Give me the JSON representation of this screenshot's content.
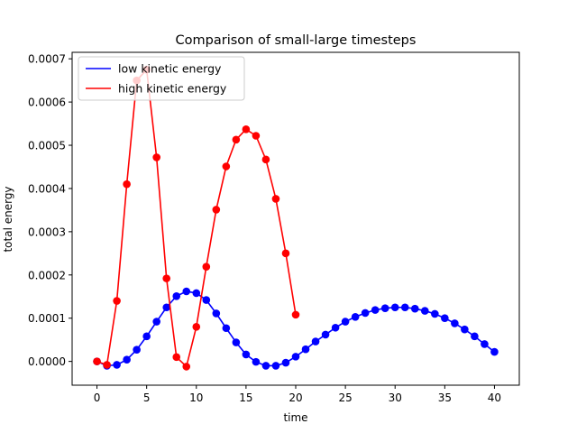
{
  "chart_data": {
    "type": "line",
    "title": "Comparison of small-large timesteps",
    "xlabel": "time",
    "ylabel": "total energy",
    "xlim": [
      -2.5,
      42.5
    ],
    "ylim": [
      -5.5e-05,
      0.000715
    ],
    "xticks": [
      0,
      5,
      10,
      15,
      20,
      25,
      30,
      35,
      40
    ],
    "xtick_labels": [
      "0",
      "5",
      "10",
      "15",
      "20",
      "25",
      "30",
      "35",
      "40"
    ],
    "yticks": [
      0,
      0.0001,
      0.0002,
      0.0003,
      0.0004,
      0.0005,
      0.0006,
      0.0007
    ],
    "ytick_labels": [
      "0.0000",
      "0.0001",
      "0.0002",
      "0.0003",
      "0.0004",
      "0.0005",
      "0.0006",
      "0.0007"
    ],
    "grid": false,
    "legend_position": "top-left",
    "series": [
      {
        "name": "low kinetic energy",
        "color": "#0000ff",
        "markers": true,
        "x": [
          0,
          1,
          2,
          3,
          4,
          5,
          6,
          7,
          8,
          9,
          10,
          11,
          12,
          13,
          14,
          15,
          16,
          17,
          18,
          19,
          20,
          21,
          22,
          23,
          24,
          25,
          26,
          27,
          28,
          29,
          30,
          31,
          32,
          33,
          34,
          35,
          36,
          37,
          38,
          39,
          40
        ],
        "y": [
          0.0,
          -1e-05,
          -8e-06,
          4e-06,
          2.7e-05,
          5.8e-05,
          9.2e-05,
          0.000125,
          0.000151,
          0.000162,
          0.000158,
          0.000142,
          0.000111,
          7.7e-05,
          4.4e-05,
          1.6e-05,
          -1e-06,
          -1e-05,
          -1e-05,
          -3e-06,
          1.1e-05,
          2.8e-05,
          4.6e-05,
          6.2e-05,
          7.8e-05,
          9.2e-05,
          0.000103,
          0.000112,
          0.000119,
          0.000123,
          0.000125,
          0.000125,
          0.000122,
          0.000117,
          0.00011,
          0.0001,
          8.8e-05,
          7.4e-05,
          5.8e-05,
          4e-05,
          2.2e-05
        ]
      },
      {
        "name": "high kinetic energy",
        "color": "#ff0000",
        "markers": true,
        "x": [
          0,
          1,
          2,
          3,
          4,
          5,
          6,
          7,
          8,
          9,
          10,
          11,
          12,
          13,
          14,
          15,
          16,
          17,
          18,
          19,
          20
        ],
        "y": [
          0.0,
          -8e-06,
          0.00014,
          0.00041,
          0.00065,
          0.000675,
          0.000472,
          0.000192,
          1e-05,
          -1.2e-05,
          8e-05,
          0.000219,
          0.000351,
          0.000451,
          0.000513,
          0.000537,
          0.000522,
          0.000467,
          0.000376,
          0.00025,
          0.000108
        ]
      }
    ]
  }
}
